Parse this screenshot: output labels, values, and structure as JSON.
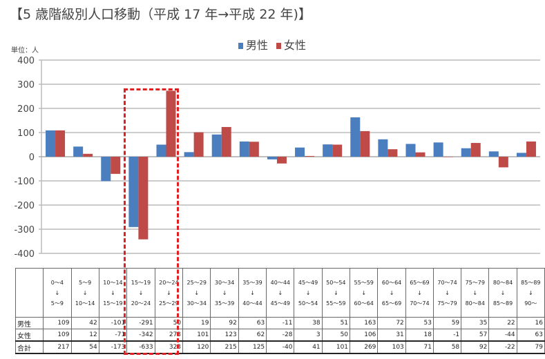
{
  "chart_data": {
    "type": "bar",
    "title": "【5 歳階級別人口移動（平成 17 年→平成 22 年)】",
    "unit_label": "単位：人",
    "ylim": [
      -400,
      400
    ],
    "yticks": [
      400,
      300,
      200,
      100,
      0,
      -100,
      -200,
      -300,
      -400
    ],
    "grid": true,
    "legend_position": "top",
    "categories": [
      {
        "from": "0～4",
        "to": "5～9"
      },
      {
        "from": "5～9",
        "to": "10～14"
      },
      {
        "from": "10～14",
        "to": "15～19"
      },
      {
        "from": "15～19",
        "to": "20～24"
      },
      {
        "from": "20～24",
        "to": "25～29"
      },
      {
        "from": "25～29",
        "to": "30～34"
      },
      {
        "from": "30～34",
        "to": "35～39"
      },
      {
        "from": "35～39",
        "to": "40～44"
      },
      {
        "from": "40～44",
        "to": "45～49"
      },
      {
        "from": "45～49",
        "to": "50～54"
      },
      {
        "from": "50～54",
        "to": "55～59"
      },
      {
        "from": "55～59",
        "to": "60～64"
      },
      {
        "from": "60～64",
        "to": "65～69"
      },
      {
        "from": "65～69",
        "to": "70～74"
      },
      {
        "from": "70～74",
        "to": "75～79"
      },
      {
        "from": "75～79",
        "to": "80～84"
      },
      {
        "from": "80～84",
        "to": "85～89"
      },
      {
        "from": "85～89",
        "to": "90～"
      }
    ],
    "arrow": "↓",
    "series": [
      {
        "name": "男性",
        "color": "#4a7ebf",
        "values": [
          109,
          42,
          -101,
          -291,
          50,
          19,
          92,
          63,
          -11,
          38,
          51,
          163,
          72,
          53,
          59,
          35,
          22,
          16
        ]
      },
      {
        "name": "女性",
        "color": "#be4b48",
        "values": [
          109,
          12,
          -71,
          -342,
          273,
          101,
          123,
          62,
          -28,
          3,
          50,
          106,
          31,
          18,
          -1,
          57,
          -44,
          63
        ]
      }
    ],
    "total": {
      "name": "合計",
      "values": [
        217,
        54,
        -173,
        -633,
        323,
        120,
        215,
        125,
        -40,
        41,
        101,
        269,
        103,
        71,
        58,
        92,
        -22,
        79
      ]
    },
    "highlight": {
      "categories": [
        "15～19→20～24",
        "20～24→25～29"
      ],
      "color": "#e02020"
    }
  }
}
